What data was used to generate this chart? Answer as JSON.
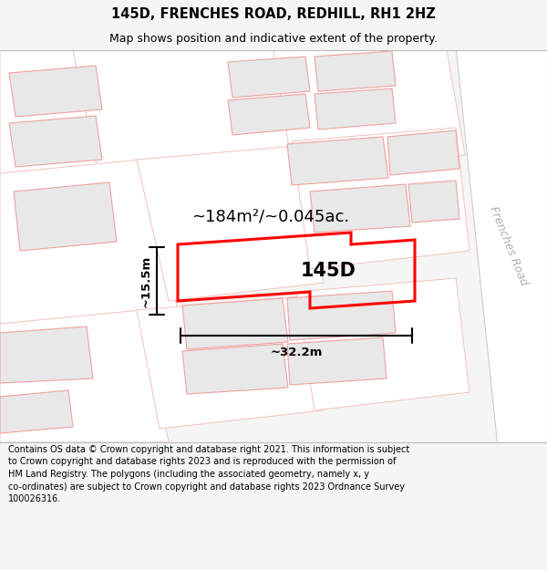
{
  "title": "145D, FRENCHES ROAD, REDHILL, RH1 2HZ",
  "subtitle": "Map shows position and indicative extent of the property.",
  "footer_line1": "Contains OS data © Crown copyright and database right 2021. This information is subject",
  "footer_line2": "to Crown copyright and database rights 2023 and is reproduced with the permission of",
  "footer_line3": "HM Land Registry. The polygons (including the associated geometry, namely x, y",
  "footer_line4": "co-ordinates) are subject to Crown copyright and database rights 2023 Ordnance Survey",
  "footer_line5": "100026316.",
  "bg_color": "#f5f5f5",
  "map_bg": "#ffffff",
  "title_color": "#000000",
  "label_145d": "145D",
  "area_label": "~184m²/~0.045ac.",
  "width_label": "~32.2m",
  "height_label": "~15.5m",
  "road_label": "Frenches Road",
  "property_color": "#ff0000",
  "building_fill": "#e8e8e8",
  "building_stroke": "#f0a0a0",
  "parcel_stroke": "#f5c0c0",
  "road_stroke": "#c8c8c8"
}
